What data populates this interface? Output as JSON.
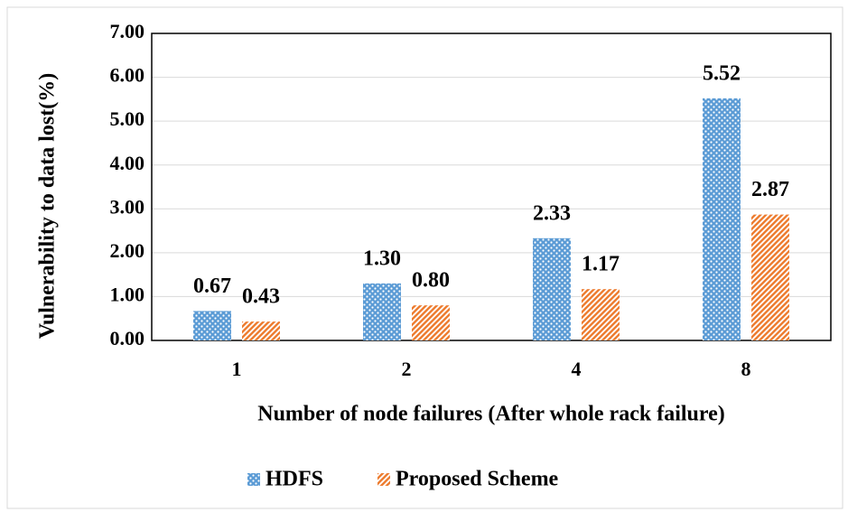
{
  "chart_data": {
    "type": "bar",
    "x_label": "Number of node failures (After whole rack failure)",
    "y_label": "Vulnerability to data lost(%)",
    "categories": [
      "1",
      "2",
      "4",
      "8"
    ],
    "series": [
      {
        "name": "HDFS",
        "color": "#5b9bd5",
        "values": [
          0.67,
          1.3,
          2.33,
          5.52
        ],
        "value_labels": [
          "0.67",
          "1.30",
          "2.33",
          "5.52"
        ]
      },
      {
        "name": "Proposed Scheme",
        "color": "#ed7d31",
        "values": [
          0.43,
          0.8,
          1.17,
          2.87
        ],
        "value_labels": [
          "0.43",
          "0.80",
          "1.17",
          "2.87"
        ]
      }
    ],
    "ylim": [
      0,
      7
    ],
    "yticks": [
      {
        "value": 0,
        "label": "0.00"
      },
      {
        "value": 1,
        "label": "1.00"
      },
      {
        "value": 2,
        "label": "2.00"
      },
      {
        "value": 3,
        "label": "3.00"
      },
      {
        "value": 4,
        "label": "4.00"
      },
      {
        "value": 5,
        "label": "5.00"
      },
      {
        "value": 6,
        "label": "6.00"
      },
      {
        "value": 7,
        "label": "7.00"
      }
    ],
    "grid": true,
    "legend": "bottom"
  }
}
